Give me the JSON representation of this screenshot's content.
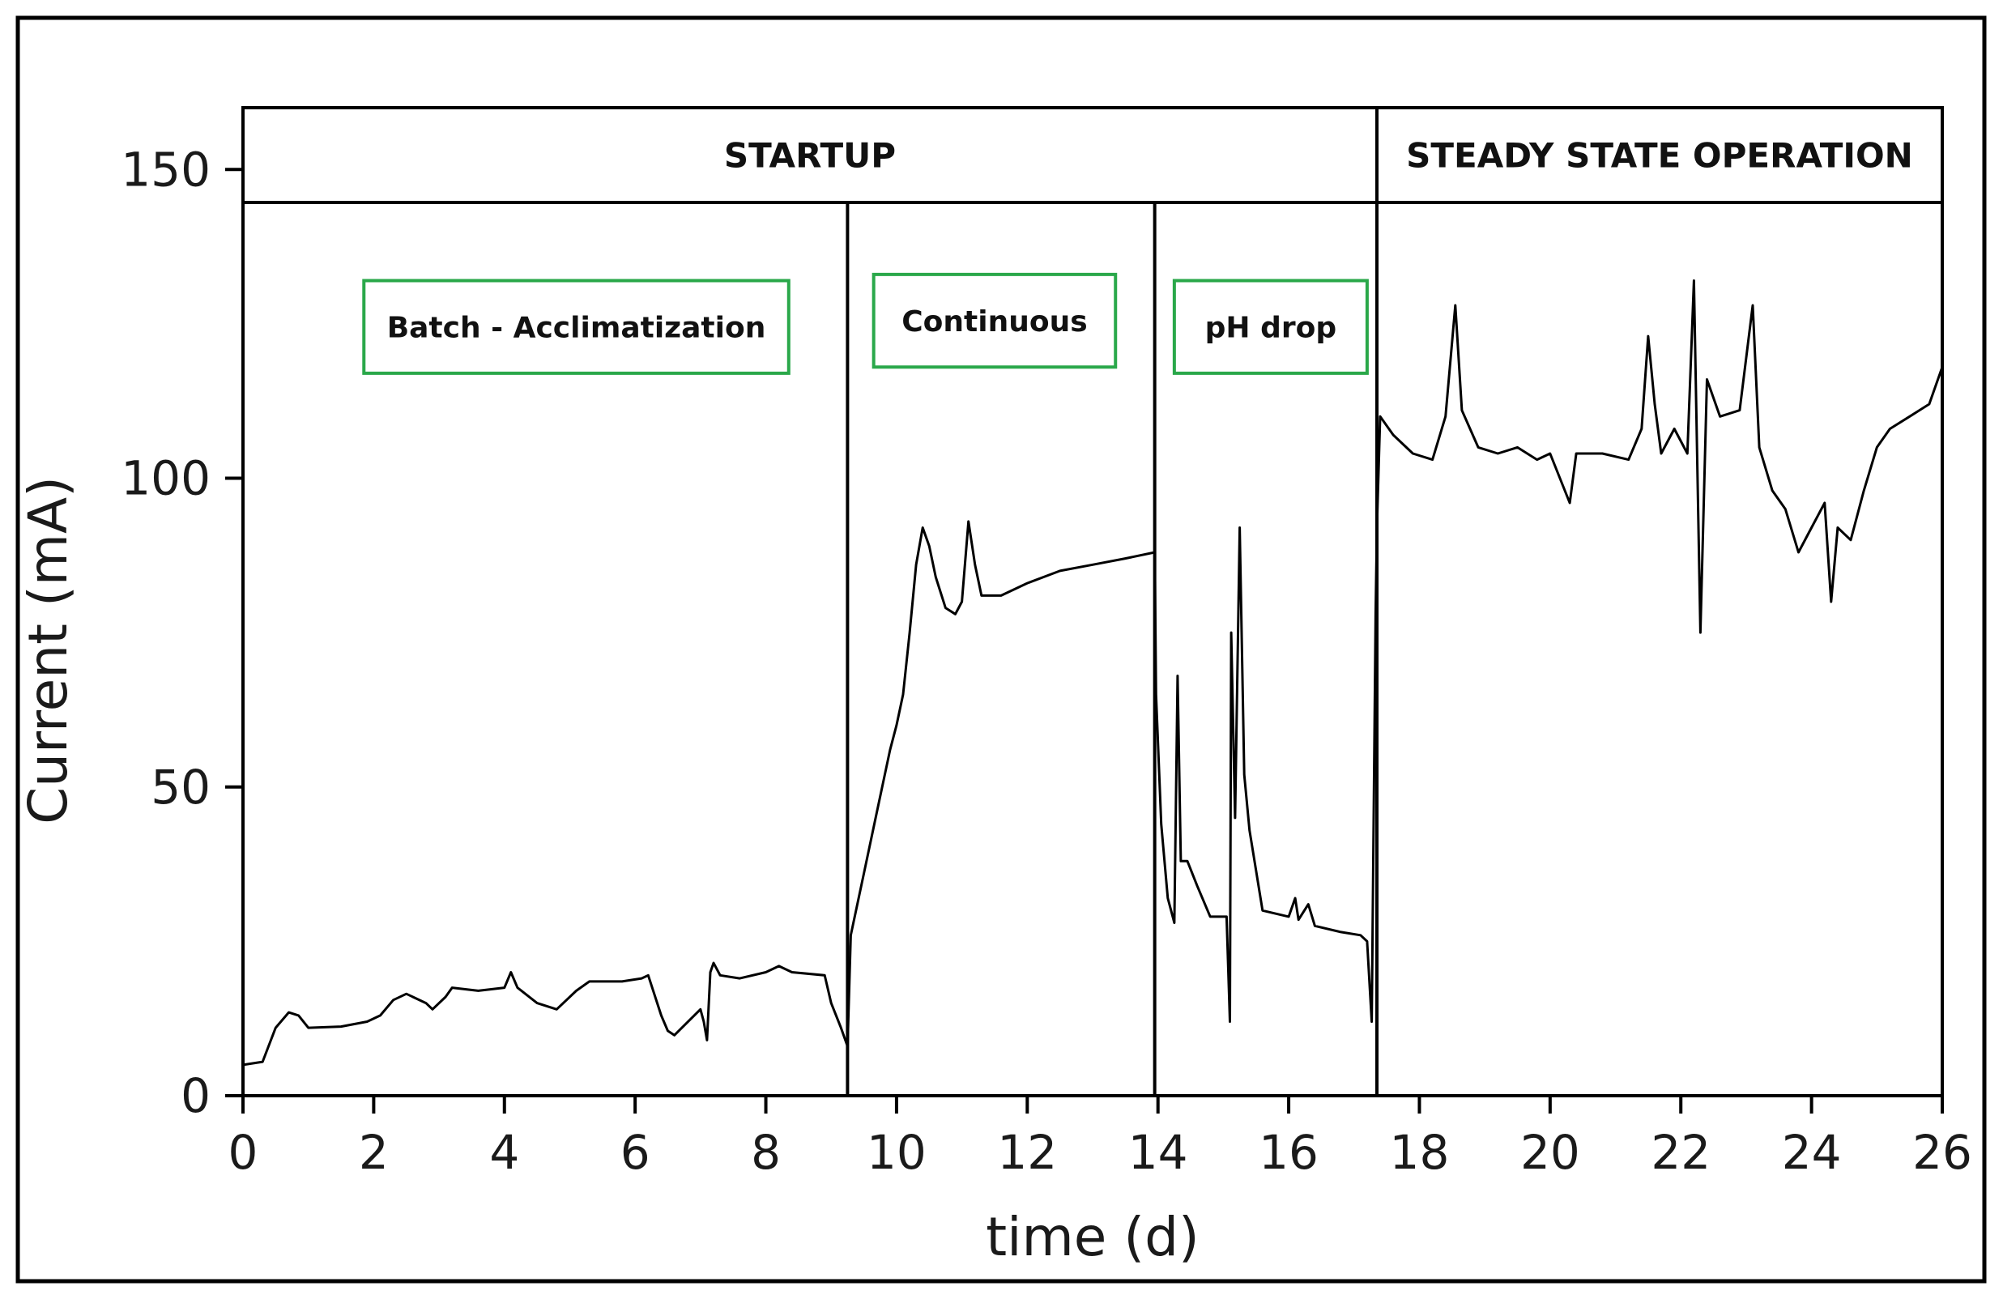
{
  "chart_data": {
    "type": "line",
    "title": "",
    "xlabel": "time (d)",
    "ylabel": "Current (mA)",
    "xlim": [
      0,
      26
    ],
    "ylim": [
      0,
      160
    ],
    "xticks": [
      0,
      2,
      4,
      6,
      8,
      10,
      12,
      14,
      16,
      18,
      20,
      22,
      24,
      26
    ],
    "yticks": [
      0,
      50,
      100,
      150
    ],
    "grid": false,
    "legend": "none",
    "line_color": "#000000",
    "annotation_box_color": "#2aa84a",
    "phase_bands": [
      {
        "label": "STARTUP",
        "x_start": 0,
        "x_end": 17.35
      },
      {
        "label": "STEADY STATE OPERATION",
        "x_start": 17.35,
        "x_end": 26
      }
    ],
    "phase_dividers": [
      9.25,
      13.95,
      17.35
    ],
    "annotations": [
      {
        "label": "Batch - Acclimatization",
        "x_start": 1.85,
        "x_end": 8.35,
        "y_top": 132,
        "y_bottom": 117
      },
      {
        "label": "Continuous",
        "x_start": 9.65,
        "x_end": 13.35,
        "y_top": 133,
        "y_bottom": 118
      },
      {
        "label": "pH drop",
        "x_start": 14.25,
        "x_end": 17.2,
        "y_top": 132,
        "y_bottom": 117
      }
    ],
    "series": [
      {
        "values": [
          [
            0.0,
            5
          ],
          [
            0.3,
            5.5
          ],
          [
            0.5,
            11
          ],
          [
            0.7,
            13.5
          ],
          [
            0.85,
            13
          ],
          [
            1.0,
            11
          ],
          [
            1.5,
            11.2
          ],
          [
            1.9,
            12
          ],
          [
            2.1,
            13
          ],
          [
            2.3,
            15.5
          ],
          [
            2.5,
            16.5
          ],
          [
            2.8,
            15
          ],
          [
            2.9,
            14
          ],
          [
            3.1,
            16
          ],
          [
            3.2,
            17.5
          ],
          [
            3.6,
            17
          ],
          [
            4.0,
            17.5
          ],
          [
            4.1,
            20
          ],
          [
            4.2,
            17.5
          ],
          [
            4.5,
            15
          ],
          [
            4.8,
            14
          ],
          [
            5.1,
            17
          ],
          [
            5.3,
            18.5
          ],
          [
            5.8,
            18.5
          ],
          [
            6.1,
            19
          ],
          [
            6.2,
            19.5
          ],
          [
            6.4,
            13
          ],
          [
            6.5,
            10.5
          ],
          [
            6.6,
            9.8
          ],
          [
            7.0,
            14
          ],
          [
            7.05,
            12
          ],
          [
            7.1,
            9
          ],
          [
            7.15,
            20
          ],
          [
            7.2,
            21.5
          ],
          [
            7.3,
            19.5
          ],
          [
            7.6,
            19
          ],
          [
            8.0,
            20
          ],
          [
            8.2,
            21
          ],
          [
            8.4,
            20
          ],
          [
            8.9,
            19.5
          ],
          [
            9.0,
            15
          ],
          [
            9.15,
            11
          ],
          [
            9.25,
            8
          ],
          [
            9.3,
            26
          ],
          [
            9.5,
            36
          ],
          [
            9.7,
            46
          ],
          [
            9.9,
            56
          ],
          [
            10.0,
            60
          ],
          [
            10.1,
            65
          ],
          [
            10.2,
            75
          ],
          [
            10.3,
            86
          ],
          [
            10.4,
            92
          ],
          [
            10.5,
            89
          ],
          [
            10.6,
            84
          ],
          [
            10.75,
            79
          ],
          [
            10.9,
            78
          ],
          [
            11.0,
            80
          ],
          [
            11.1,
            93
          ],
          [
            11.2,
            86
          ],
          [
            11.3,
            81
          ],
          [
            11.6,
            81
          ],
          [
            12.0,
            83
          ],
          [
            12.5,
            85
          ],
          [
            13.0,
            86
          ],
          [
            13.5,
            87
          ],
          [
            13.95,
            88
          ],
          [
            13.97,
            65
          ],
          [
            14.05,
            44
          ],
          [
            14.15,
            32
          ],
          [
            14.25,
            28
          ],
          [
            14.3,
            68
          ],
          [
            14.35,
            38
          ],
          [
            14.45,
            38
          ],
          [
            14.6,
            34
          ],
          [
            14.8,
            29
          ],
          [
            15.05,
            29
          ],
          [
            15.1,
            12
          ],
          [
            15.12,
            75
          ],
          [
            15.18,
            45
          ],
          [
            15.25,
            92
          ],
          [
            15.32,
            52
          ],
          [
            15.4,
            43
          ],
          [
            15.6,
            30
          ],
          [
            16.0,
            29
          ],
          [
            16.1,
            32
          ],
          [
            16.15,
            28.5
          ],
          [
            16.3,
            31
          ],
          [
            16.4,
            27.5
          ],
          [
            16.8,
            26.5
          ],
          [
            17.1,
            26
          ],
          [
            17.2,
            25
          ],
          [
            17.27,
            12
          ],
          [
            17.33,
            78
          ],
          [
            17.35,
            92
          ],
          [
            17.4,
            110
          ],
          [
            17.6,
            107
          ],
          [
            17.9,
            104
          ],
          [
            18.2,
            103
          ],
          [
            18.4,
            110
          ],
          [
            18.55,
            128
          ],
          [
            18.65,
            111
          ],
          [
            18.9,
            105
          ],
          [
            19.2,
            104
          ],
          [
            19.5,
            105
          ],
          [
            19.8,
            103
          ],
          [
            20.0,
            104
          ],
          [
            20.3,
            96
          ],
          [
            20.4,
            104
          ],
          [
            20.8,
            104
          ],
          [
            21.2,
            103
          ],
          [
            21.4,
            108
          ],
          [
            21.5,
            123
          ],
          [
            21.6,
            112
          ],
          [
            21.7,
            104
          ],
          [
            21.9,
            108
          ],
          [
            22.1,
            104
          ],
          [
            22.2,
            132
          ],
          [
            22.3,
            75
          ],
          [
            22.4,
            116
          ],
          [
            22.6,
            110
          ],
          [
            22.9,
            111
          ],
          [
            23.1,
            128
          ],
          [
            23.2,
            105
          ],
          [
            23.4,
            98
          ],
          [
            23.6,
            95
          ],
          [
            23.8,
            88
          ],
          [
            24.0,
            92
          ],
          [
            24.2,
            96
          ],
          [
            24.3,
            80
          ],
          [
            24.4,
            92
          ],
          [
            24.6,
            90
          ],
          [
            24.8,
            98
          ],
          [
            25.0,
            105
          ],
          [
            25.2,
            108
          ],
          [
            25.5,
            110
          ],
          [
            25.8,
            112
          ],
          [
            26.0,
            118
          ]
        ]
      }
    ]
  }
}
